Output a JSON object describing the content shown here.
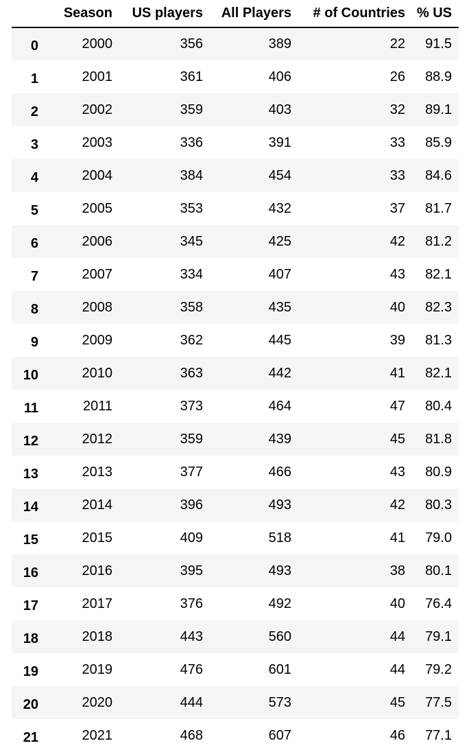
{
  "table": {
    "columns": [
      "",
      "Season",
      "US players",
      "All Players",
      "# of Countries",
      "% US"
    ],
    "rows": [
      {
        "index": "0",
        "cells": [
          "2000",
          "356",
          "389",
          "22",
          "91.5"
        ]
      },
      {
        "index": "1",
        "cells": [
          "2001",
          "361",
          "406",
          "26",
          "88.9"
        ]
      },
      {
        "index": "2",
        "cells": [
          "2002",
          "359",
          "403",
          "32",
          "89.1"
        ]
      },
      {
        "index": "3",
        "cells": [
          "2003",
          "336",
          "391",
          "33",
          "85.9"
        ]
      },
      {
        "index": "4",
        "cells": [
          "2004",
          "384",
          "454",
          "33",
          "84.6"
        ]
      },
      {
        "index": "5",
        "cells": [
          "2005",
          "353",
          "432",
          "37",
          "81.7"
        ]
      },
      {
        "index": "6",
        "cells": [
          "2006",
          "345",
          "425",
          "42",
          "81.2"
        ]
      },
      {
        "index": "7",
        "cells": [
          "2007",
          "334",
          "407",
          "43",
          "82.1"
        ]
      },
      {
        "index": "8",
        "cells": [
          "2008",
          "358",
          "435",
          "40",
          "82.3"
        ]
      },
      {
        "index": "9",
        "cells": [
          "2009",
          "362",
          "445",
          "39",
          "81.3"
        ]
      },
      {
        "index": "10",
        "cells": [
          "2010",
          "363",
          "442",
          "41",
          "82.1"
        ]
      },
      {
        "index": "11",
        "cells": [
          "2011",
          "373",
          "464",
          "47",
          "80.4"
        ]
      },
      {
        "index": "12",
        "cells": [
          "2012",
          "359",
          "439",
          "45",
          "81.8"
        ]
      },
      {
        "index": "13",
        "cells": [
          "2013",
          "377",
          "466",
          "43",
          "80.9"
        ]
      },
      {
        "index": "14",
        "cells": [
          "2014",
          "396",
          "493",
          "42",
          "80.3"
        ]
      },
      {
        "index": "15",
        "cells": [
          "2015",
          "409",
          "518",
          "41",
          "79.0"
        ]
      },
      {
        "index": "16",
        "cells": [
          "2016",
          "395",
          "493",
          "38",
          "80.1"
        ]
      },
      {
        "index": "17",
        "cells": [
          "2017",
          "376",
          "492",
          "40",
          "76.4"
        ]
      },
      {
        "index": "18",
        "cells": [
          "2018",
          "443",
          "560",
          "44",
          "79.1"
        ]
      },
      {
        "index": "19",
        "cells": [
          "2019",
          "476",
          "601",
          "44",
          "79.2"
        ]
      },
      {
        "index": "20",
        "cells": [
          "2020",
          "444",
          "573",
          "45",
          "77.5"
        ]
      },
      {
        "index": "21",
        "cells": [
          "2021",
          "468",
          "607",
          "46",
          "77.1"
        ]
      }
    ]
  }
}
